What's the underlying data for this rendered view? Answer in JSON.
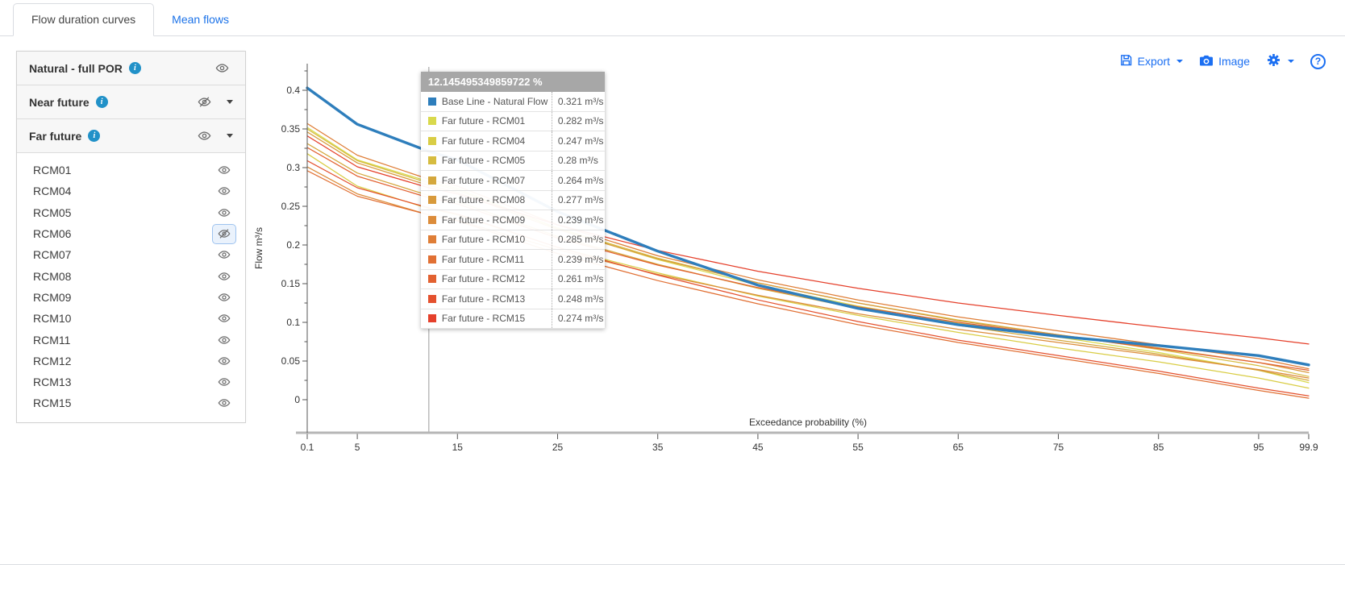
{
  "tabs": {
    "flow_duration": "Flow duration curves",
    "mean_flows": "Mean flows"
  },
  "toolbar": {
    "export_label": "Export",
    "image_label": "Image"
  },
  "sidebar": {
    "groups": [
      {
        "label": "Natural - full POR",
        "visible": true,
        "expandable": false
      },
      {
        "label": "Near future",
        "visible": false,
        "expandable": true
      },
      {
        "label": "Far future",
        "visible": true,
        "expandable": true
      }
    ],
    "models": [
      {
        "label": "RCM01",
        "visible": true
      },
      {
        "label": "RCM04",
        "visible": true
      },
      {
        "label": "RCM05",
        "visible": true
      },
      {
        "label": "RCM06",
        "visible": false,
        "focused": true
      },
      {
        "label": "RCM07",
        "visible": true
      },
      {
        "label": "RCM08",
        "visible": true
      },
      {
        "label": "RCM09",
        "visible": true
      },
      {
        "label": "RCM10",
        "visible": true
      },
      {
        "label": "RCM11",
        "visible": true
      },
      {
        "label": "RCM12",
        "visible": true
      },
      {
        "label": "RCM13",
        "visible": true
      },
      {
        "label": "RCM15",
        "visible": true
      }
    ]
  },
  "tooltip": {
    "header": "12.145495349859722 %",
    "rows": [
      {
        "label": "Base Line - Natural Flow",
        "value": "0.321 m³/s",
        "color": "#2e7ebc"
      },
      {
        "label": "Far future - RCM01",
        "value": "0.282 m³/s",
        "color": "#d9d94c"
      },
      {
        "label": "Far future - RCM04",
        "value": "0.247 m³/s",
        "color": "#d9cd45"
      },
      {
        "label": "Far future - RCM05",
        "value": "0.28 m³/s",
        "color": "#d6bc40"
      },
      {
        "label": "Far future - RCM07",
        "value": "0.264 m³/s",
        "color": "#d4a73c"
      },
      {
        "label": "Far future - RCM08",
        "value": "0.277 m³/s",
        "color": "#d89a3c"
      },
      {
        "label": "Far future - RCM09",
        "value": "0.239 m³/s",
        "color": "#dc8c3a"
      },
      {
        "label": "Far future - RCM10",
        "value": "0.285 m³/s",
        "color": "#df7e37"
      },
      {
        "label": "Far future - RCM11",
        "value": "0.239 m³/s",
        "color": "#e17034"
      },
      {
        "label": "Far future - RCM12",
        "value": "0.261 m³/s",
        "color": "#e26131"
      },
      {
        "label": "Far future - RCM13",
        "value": "0.248 m³/s",
        "color": "#e4512e"
      },
      {
        "label": "Far future - RCM15",
        "value": "0.274 m³/s",
        "color": "#e5402b"
      }
    ]
  },
  "chart_data": {
    "type": "line",
    "title": "",
    "xlabel": "Exceedance probability (%)",
    "ylabel": "Flow m³/s",
    "x_ticks": [
      "0.1",
      "5",
      "15",
      "25",
      "35",
      "45",
      "55",
      "65",
      "75",
      "85",
      "95",
      "99.9"
    ],
    "x_tick_values": [
      0.1,
      5,
      15,
      25,
      35,
      45,
      55,
      65,
      75,
      85,
      95,
      99.9
    ],
    "y_ticks": [
      "0",
      "0.05",
      "0.1",
      "0.15",
      "0.2",
      "0.25",
      "0.3",
      "0.35",
      "0.4"
    ],
    "ylim": [
      -0.022,
      0.435
    ],
    "grid": false,
    "legend_position": "none",
    "crosshair_x": 12.145495349859722,
    "x": [
      0.1,
      5,
      12.145495349859722,
      15,
      25,
      35,
      45,
      55,
      65,
      75,
      85,
      95,
      99.9
    ],
    "series": [
      {
        "name": "Base Line - Natural Flow",
        "color": "#2e7ebc",
        "width": 3.4,
        "values": [
          0.403,
          0.356,
          0.321,
          0.31,
          0.243,
          0.192,
          0.148,
          0.118,
          0.097,
          0.082,
          0.07,
          0.057,
          0.045
        ]
      },
      {
        "name": "Far future - RCM01",
        "color": "#d9d94c",
        "width": 1.25,
        "values": [
          0.352,
          0.31,
          0.282,
          0.273,
          0.221,
          0.181,
          0.148,
          0.121,
          0.099,
          0.081,
          0.061,
          0.038,
          0.022
        ]
      },
      {
        "name": "Far future - RCM04",
        "color": "#d9cd45",
        "width": 1.25,
        "values": [
          0.318,
          0.276,
          0.247,
          0.239,
          0.197,
          0.164,
          0.134,
          0.109,
          0.087,
          0.067,
          0.049,
          0.028,
          0.015
        ]
      },
      {
        "name": "Far future - RCM05",
        "color": "#d6bc40",
        "width": 1.25,
        "values": [
          0.35,
          0.309,
          0.28,
          0.271,
          0.222,
          0.183,
          0.151,
          0.125,
          0.103,
          0.084,
          0.065,
          0.044,
          0.03
        ]
      },
      {
        "name": "Far future - RCM07",
        "color": "#d4a73c",
        "width": 1.25,
        "values": [
          0.331,
          0.293,
          0.264,
          0.256,
          0.211,
          0.175,
          0.144,
          0.118,
          0.096,
          0.077,
          0.059,
          0.038,
          0.025
        ]
      },
      {
        "name": "Far future - RCM08",
        "color": "#d89a3c",
        "width": 1.25,
        "values": [
          0.346,
          0.306,
          0.277,
          0.268,
          0.22,
          0.182,
          0.151,
          0.125,
          0.102,
          0.084,
          0.067,
          0.048,
          0.035
        ]
      },
      {
        "name": "Far future - RCM09",
        "color": "#dc8c3a",
        "width": 1.25,
        "values": [
          0.301,
          0.266,
          0.239,
          0.232,
          0.194,
          0.162,
          0.135,
          0.111,
          0.091,
          0.074,
          0.057,
          0.039,
          0.028
        ]
      },
      {
        "name": "Far future - RCM10",
        "color": "#df7e37",
        "width": 1.25,
        "values": [
          0.357,
          0.316,
          0.285,
          0.276,
          0.226,
          0.186,
          0.155,
          0.129,
          0.107,
          0.089,
          0.071,
          0.053,
          0.04
        ]
      },
      {
        "name": "Far future - RCM11",
        "color": "#e17034",
        "width": 1.25,
        "values": [
          0.296,
          0.263,
          0.239,
          0.231,
          0.189,
          0.154,
          0.124,
          0.097,
          0.074,
          0.054,
          0.034,
          0.012,
          0.002
        ]
      },
      {
        "name": "Far future - RCM12",
        "color": "#e26131",
        "width": 1.25,
        "values": [
          0.326,
          0.289,
          0.261,
          0.253,
          0.209,
          0.174,
          0.145,
          0.12,
          0.1,
          0.083,
          0.066,
          0.048,
          0.038
        ]
      },
      {
        "name": "Far future - RCM13",
        "color": "#e4512e",
        "width": 1.25,
        "values": [
          0.309,
          0.274,
          0.248,
          0.24,
          0.197,
          0.161,
          0.129,
          0.101,
          0.077,
          0.057,
          0.037,
          0.015,
          0.005
        ]
      },
      {
        "name": "Far future - RCM15",
        "color": "#e5402b",
        "width": 1.25,
        "values": [
          0.341,
          0.301,
          0.274,
          0.266,
          0.226,
          0.193,
          0.166,
          0.144,
          0.125,
          0.109,
          0.094,
          0.08,
          0.072
        ]
      }
    ]
  }
}
